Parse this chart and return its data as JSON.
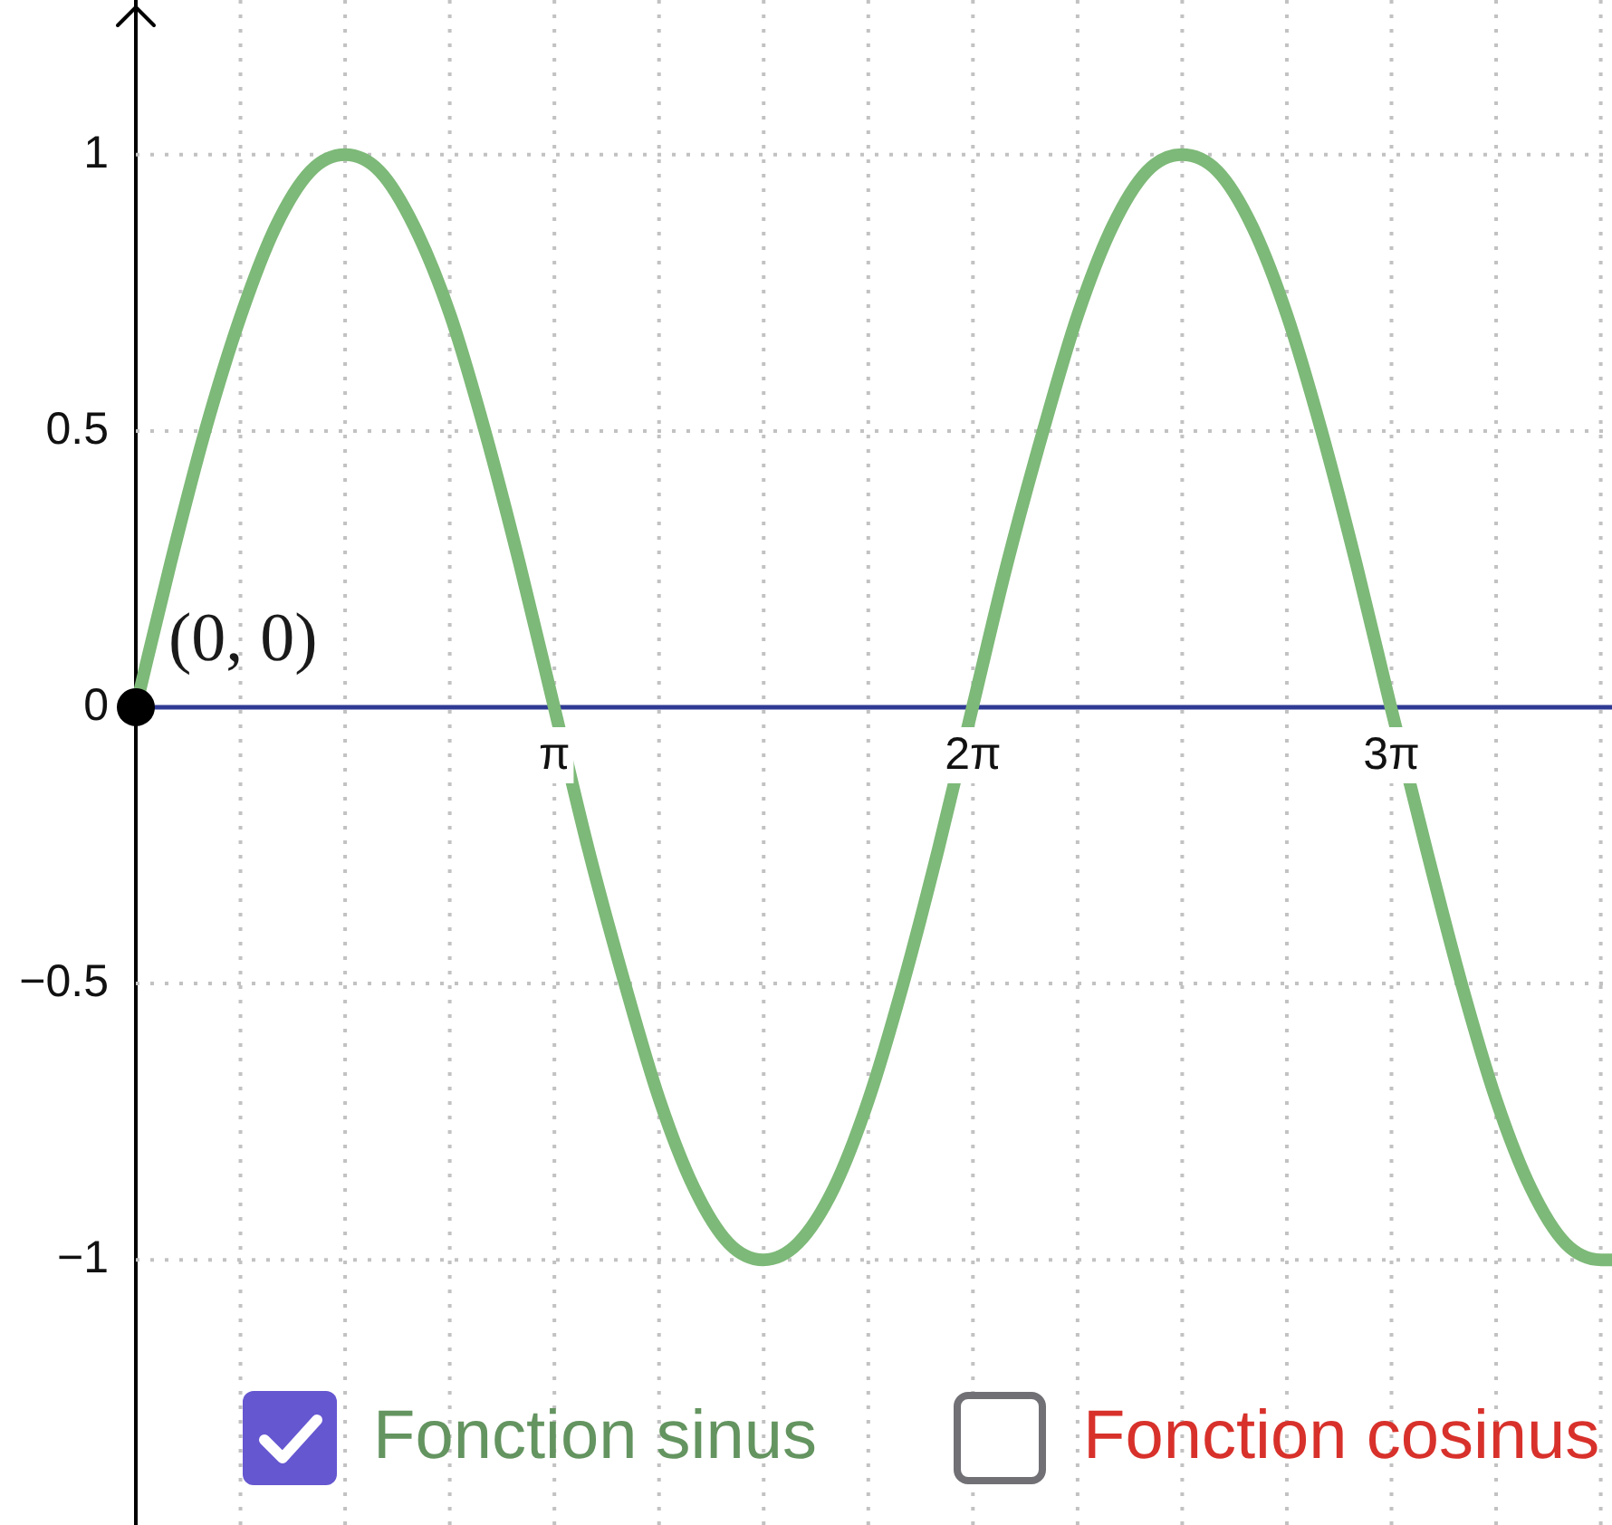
{
  "chart_data": {
    "type": "line",
    "xlim": [
      0,
      11.08
    ],
    "ylim": [
      -1.48,
      1.28
    ],
    "xticks": [
      {
        "value": 0.7854,
        "label": null
      },
      {
        "value": 1.5708,
        "label": null
      },
      {
        "value": 2.3562,
        "label": null
      },
      {
        "value": 3.1416,
        "label": "π"
      },
      {
        "value": 3.927,
        "label": null
      },
      {
        "value": 4.7124,
        "label": null
      },
      {
        "value": 5.4978,
        "label": null
      },
      {
        "value": 6.2832,
        "label": "2π"
      },
      {
        "value": 7.0686,
        "label": null
      },
      {
        "value": 7.854,
        "label": null
      },
      {
        "value": 8.6394,
        "label": null
      },
      {
        "value": 9.4248,
        "label": "3π"
      },
      {
        "value": 10.2102,
        "label": null
      },
      {
        "value": 10.9956,
        "label": null
      }
    ],
    "yticks": [
      {
        "value": -1,
        "label": "−1"
      },
      {
        "value": -0.5,
        "label": "−0.5"
      },
      0,
      0.5,
      1
    ],
    "grid": true,
    "legend": "bottom",
    "series": [
      {
        "name": "Fonction sinus",
        "color": "#7db978",
        "x": [
          0,
          0.26,
          0.52,
          0.79,
          1.05,
          1.31,
          1.57,
          1.83,
          2.09,
          2.36,
          2.62,
          2.88,
          3.14,
          3.4,
          3.67,
          3.93,
          4.19,
          4.45,
          4.71,
          4.97,
          5.24,
          5.5,
          5.76,
          6.02,
          6.28,
          6.54,
          6.81,
          7.07,
          7.33,
          7.59,
          7.85,
          8.12,
          8.38,
          8.64,
          8.9,
          9.16,
          9.42,
          9.69,
          9.95,
          10.21,
          10.47,
          10.73,
          11.0,
          11.08
        ],
        "values": [
          0,
          0.26,
          0.5,
          0.71,
          0.87,
          0.97,
          1,
          0.97,
          0.87,
          0.71,
          0.5,
          0.26,
          0,
          -0.26,
          -0.5,
          -0.71,
          -0.87,
          -0.97,
          -1,
          -0.97,
          -0.87,
          -0.71,
          -0.5,
          -0.26,
          0,
          0.26,
          0.5,
          0.71,
          0.87,
          0.97,
          1,
          0.97,
          0.87,
          0.71,
          0.5,
          0.26,
          0,
          -0.26,
          -0.5,
          -0.71,
          -0.87,
          -0.97,
          -1,
          -1
        ]
      },
      {
        "type": "scatter",
        "color": "#000000",
        "marker": "circle",
        "x": [
          0
        ],
        "values": [
          0
        ]
      }
    ],
    "annotations": [
      {
        "text": "(0, 0)",
        "x": 0,
        "y": 0
      },
      "Fonction cosinus"
    ]
  }
}
